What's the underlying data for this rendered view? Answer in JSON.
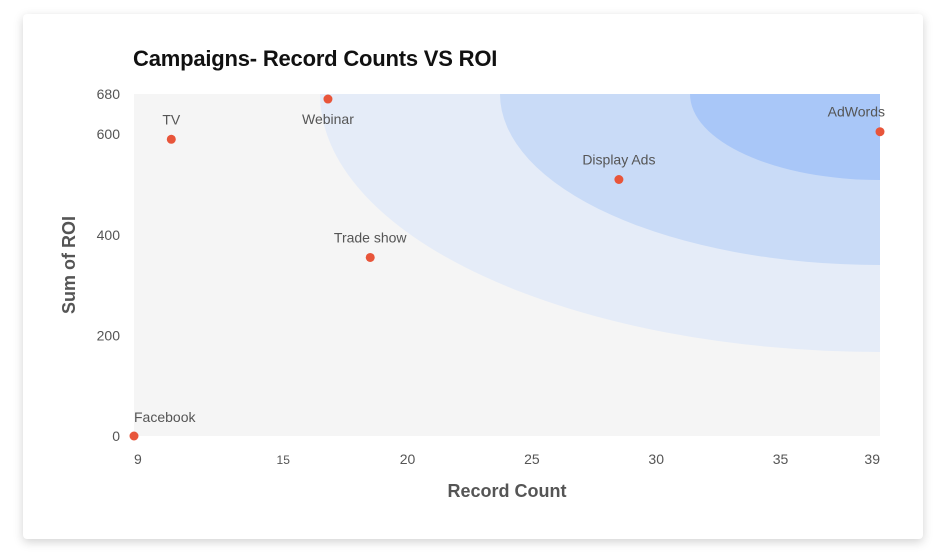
{
  "chart_data": {
    "type": "scatter",
    "title": "Campaigns- Record Counts VS ROI",
    "xlabel": "Record Count",
    "ylabel": "Sum of ROI",
    "xlim": [
      9,
      39
    ],
    "ylim": [
      0,
      680
    ],
    "x_ticks": [
      "9",
      "15",
      "20",
      "25",
      "30",
      "35",
      "39"
    ],
    "x_tick_values": [
      9,
      15,
      20,
      25,
      30,
      35,
      39
    ],
    "y_ticks": [
      "0",
      "200",
      "400",
      "600",
      "680"
    ],
    "y_tick_values": [
      0,
      200,
      400,
      600,
      680
    ],
    "points": [
      {
        "label": "Facebook",
        "x": 9,
        "y": 0
      },
      {
        "label": "TV",
        "x": 10.5,
        "y": 590
      },
      {
        "label": "Webinar",
        "x": 16.8,
        "y": 670
      },
      {
        "label": "Trade show",
        "x": 18.5,
        "y": 355
      },
      {
        "label": "Display Ads",
        "x": 28.5,
        "y": 510
      },
      {
        "label": "AdWords",
        "x": 39,
        "y": 605
      }
    ],
    "colors": {
      "point": "#e8553a",
      "plot_background": "#f5f5f5",
      "band_1": "#e5ecf8",
      "band_2": "#c9dbf7",
      "band_3": "#b0cbf7",
      "band_4": "#9fbff6"
    }
  }
}
